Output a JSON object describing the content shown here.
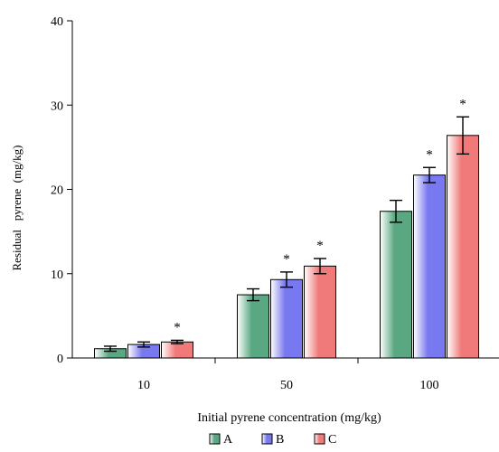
{
  "chart_data": {
    "type": "bar",
    "title": "",
    "xlabel": "Initial pyrene concentration (mg/kg)",
    "ylabel": "Residual   pyrene  (mg/kg)",
    "categories": [
      "10",
      "50",
      "100"
    ],
    "ylim": [
      0,
      40
    ],
    "yticks": [
      "0",
      "10",
      "20",
      "30",
      "40"
    ],
    "grid": false,
    "legend_position": "bottom-center",
    "significance_marker": "*",
    "series": [
      {
        "name": "A",
        "color": "#5aa882",
        "values": [
          1.1,
          7.5,
          17.4
        ],
        "errors": [
          0.3,
          0.7,
          1.3
        ],
        "significant": [
          false,
          false,
          false
        ]
      },
      {
        "name": "B",
        "color": "#7878f0",
        "values": [
          1.6,
          9.3,
          21.7
        ],
        "errors": [
          0.3,
          0.9,
          0.9
        ],
        "significant": [
          false,
          true,
          true
        ]
      },
      {
        "name": "C",
        "color": "#f07a7a",
        "values": [
          1.9,
          10.9,
          26.4
        ],
        "errors": [
          0.2,
          0.9,
          2.2
        ],
        "significant": [
          true,
          true,
          true
        ]
      }
    ]
  }
}
